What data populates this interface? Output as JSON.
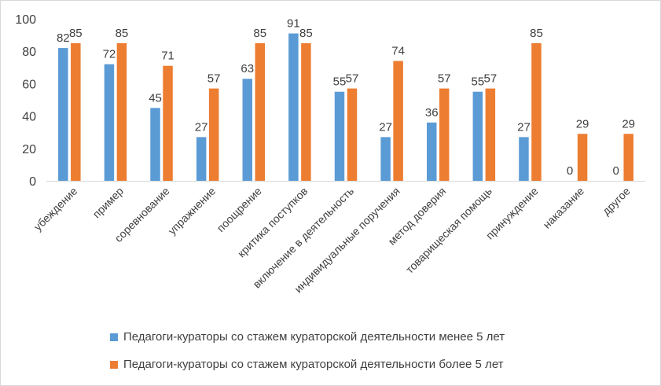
{
  "chart_data": {
    "type": "bar",
    "categories": [
      "убеждение",
      "пример",
      "соревнование",
      "упражнение",
      "поощрение",
      "критика поступков",
      "включение в  деятельность",
      "индивидуальные поручения",
      "метод доверия",
      "товарищеская помощь",
      "принуждение",
      "наказание",
      "другое"
    ],
    "series": [
      {
        "name": "Педагоги-кураторы со стажем кураторской деятельности менее 5 лет",
        "color": "#5b9bd5",
        "values": [
          82,
          72,
          45,
          27,
          63,
          91,
          55,
          27,
          36,
          55,
          27,
          0,
          0
        ]
      },
      {
        "name": "Педагоги-кураторы со стажем кураторской деятельности более 5 лет",
        "color": "#ed7d31",
        "values": [
          85,
          85,
          71,
          57,
          85,
          85,
          57,
          74,
          57,
          57,
          85,
          29,
          29
        ]
      }
    ],
    "ylim": [
      0,
      100
    ],
    "yticks": [
      "0",
      "20",
      "40",
      "60",
      "80",
      "100"
    ],
    "grid": false,
    "legend_position": "bottom",
    "title": "",
    "xlabel": "",
    "ylabel": ""
  }
}
